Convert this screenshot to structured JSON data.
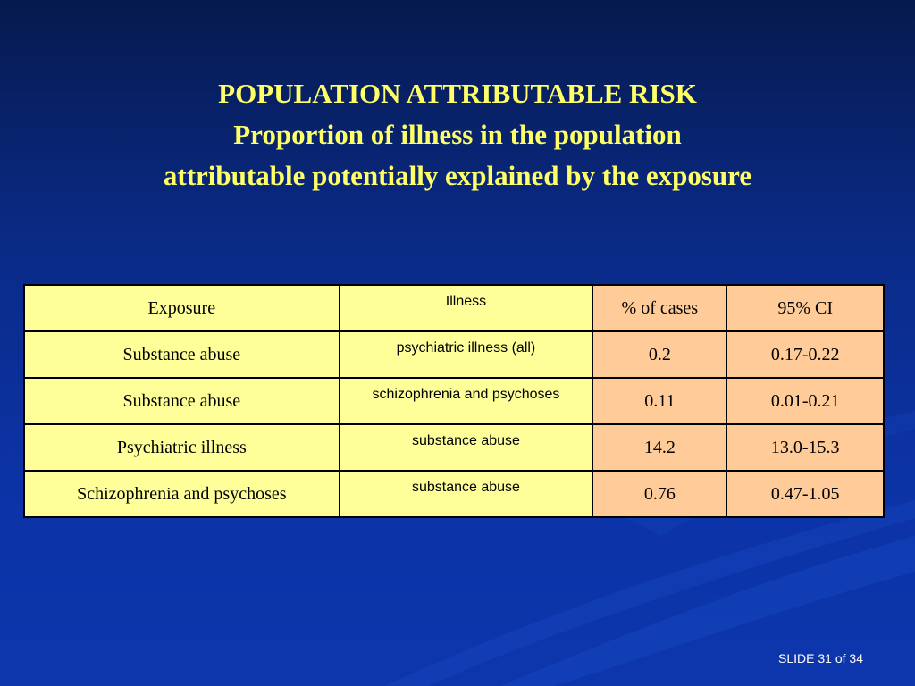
{
  "title": {
    "line1": "POPULATION ATTRIBUTABLE RISK",
    "line2": "Proportion of  illness in the population",
    "line3": "attributable potentially explained by the exposure"
  },
  "table": {
    "headers": [
      "Exposure",
      "Illness",
      "% of cases",
      "95% CI"
    ],
    "rows": [
      [
        "Substance abuse",
        "psychiatric illness (all)",
        "0.2",
        "0.17-0.22"
      ],
      [
        "Substance abuse",
        "schizophrenia and psychoses",
        "0.11",
        "0.01-0.21"
      ],
      [
        "Psychiatric illness",
        "substance abuse",
        "14.2",
        "13.0-15.3"
      ],
      [
        "Schizophrenia and psychoses",
        "substance abuse",
        "0.76",
        "0.47-1.05"
      ]
    ]
  },
  "footer": {
    "slide_number": "SLIDE 31 of 34"
  },
  "colors": {
    "title": "#ffff66",
    "left_cells": "#ffff99",
    "right_cells": "#ffcc99"
  }
}
